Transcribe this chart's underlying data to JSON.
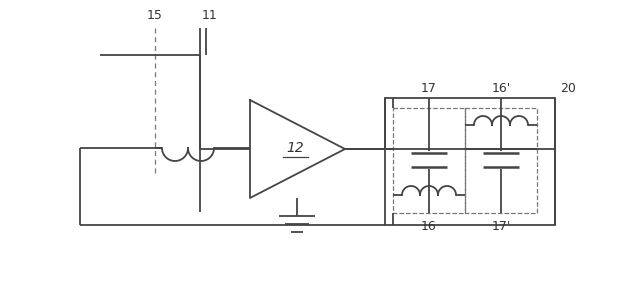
{
  "bg_color": "#ffffff",
  "line_color": "#444444",
  "dashed_color": "#777777",
  "label_color": "#333333",
  "fig_width": 6.22,
  "fig_height": 2.91,
  "dpi": 100
}
